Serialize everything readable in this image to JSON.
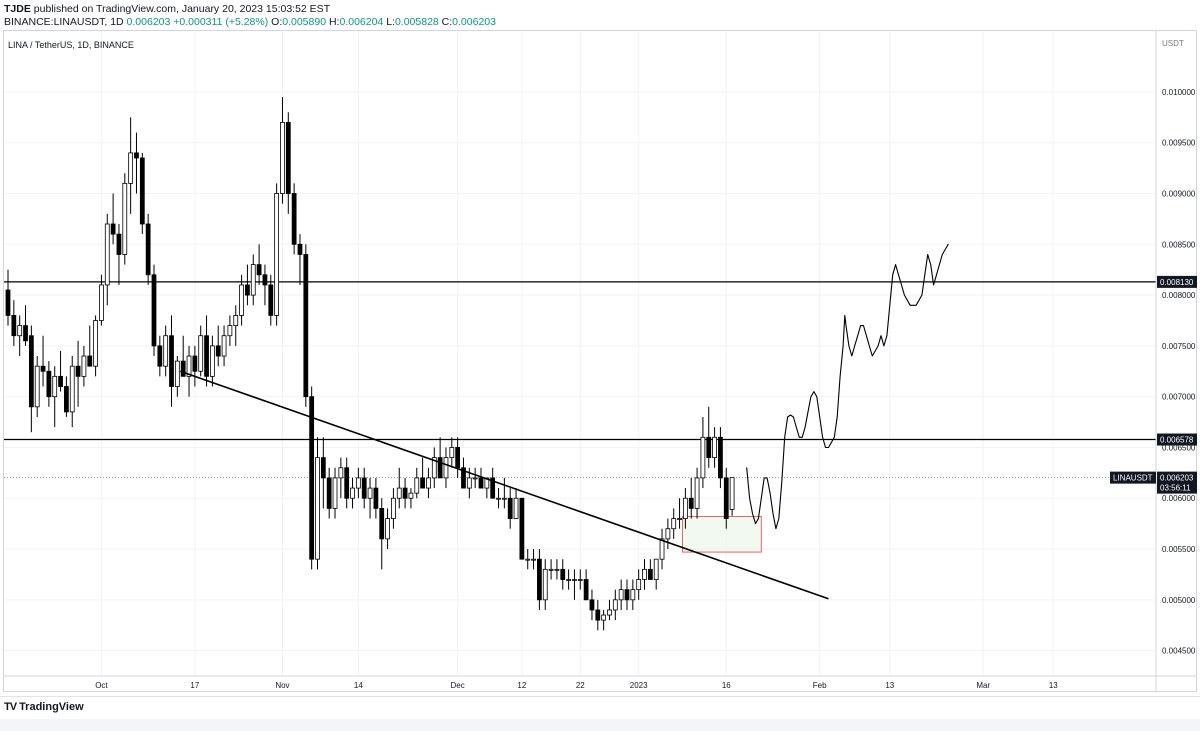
{
  "header": {
    "author": "TJDE",
    "published_text": "published on TradingView.com, January 20, 2023 15:03:52 EST",
    "symbol": "BINANCE:LINAUSDT, 1D",
    "price": "0.006203",
    "change": "+0.000311 (+5.28%)",
    "open_label": "O:",
    "open": "0.005890",
    "high_label": "H:",
    "high": "0.006204",
    "low_label": "L:",
    "low": "0.005828",
    "close_label": "C:",
    "close": "0.006203"
  },
  "footer": {
    "brand": "TradingView",
    "brand_mark": "TV"
  },
  "colors": {
    "candle": "#000000",
    "grid": "#f0f3fa",
    "axis_text": "#131722",
    "box": "#e06666",
    "box_fill": "#eaf5e6"
  },
  "chart_data": {
    "type": "candlestick",
    "title": "LINA / TetherUS, 1D, BINANCE",
    "currency_label": "USDT",
    "y_ticks": [
      "0.010000",
      "0.009500",
      "0.009000",
      "0.008500",
      "0.008000",
      "0.007500",
      "0.007000",
      "0.006500",
      "0.006000",
      "0.005500",
      "0.005000",
      "0.004500"
    ],
    "ylim": [
      0.00425,
      0.0106
    ],
    "x_ticks": [
      {
        "label": "Oct",
        "day": 0
      },
      {
        "label": "17",
        "day": 16
      },
      {
        "label": "Nov",
        "day": 31
      },
      {
        "label": "14",
        "day": 44
      },
      {
        "label": "Dec",
        "day": 61
      },
      {
        "label": "12",
        "day": 72
      },
      {
        "label": "22",
        "day": 82
      },
      {
        "label": "2023",
        "day": 92
      },
      {
        "label": "16",
        "day": 107
      },
      {
        "label": "Feb",
        "day": 123
      },
      {
        "label": "13",
        "day": 135
      },
      {
        "label": "Mar",
        "day": 151
      },
      {
        "label": "13",
        "day": 163
      }
    ],
    "xlim": [
      -16,
      171
    ],
    "levels": [
      {
        "value": 0.00813,
        "label": "0.008130"
      },
      {
        "value": 0.006578,
        "label": "0.006578"
      }
    ],
    "current_price": {
      "value": 0.006203,
      "symbol": "LINAUSDT",
      "price_label": "0.006203",
      "countdown": "03:56:11"
    },
    "trendline": [
      {
        "day": 13.5,
        "price": 0.00725
      },
      {
        "day": 124.5,
        "price": 0.00501
      }
    ],
    "highlight_box": {
      "day_start": 99.5,
      "day_end": 113,
      "price_top": 0.00582,
      "price_bottom": 0.00547
    },
    "projection_path": [
      [
        110.5,
        0.0063
      ],
      [
        111,
        0.006
      ],
      [
        111.5,
        0.00585
      ],
      [
        112,
        0.00575
      ],
      [
        112.5,
        0.0058
      ],
      [
        113,
        0.006
      ],
      [
        113.5,
        0.0062
      ],
      [
        114,
        0.0062
      ],
      [
        114.5,
        0.00605
      ],
      [
        115,
        0.00585
      ],
      [
        115.5,
        0.0057
      ],
      [
        116,
        0.0058
      ],
      [
        116.5,
        0.00615
      ],
      [
        117,
        0.0066
      ],
      [
        117.5,
        0.0068
      ],
      [
        118,
        0.00682
      ],
      [
        118.5,
        0.0068
      ],
      [
        119,
        0.0067
      ],
      [
        119.5,
        0.0066
      ],
      [
        120,
        0.0066
      ],
      [
        120.5,
        0.0067
      ],
      [
        121,
        0.00685
      ],
      [
        121.5,
        0.007
      ],
      [
        122,
        0.00705
      ],
      [
        122.5,
        0.007
      ],
      [
        123,
        0.0068
      ],
      [
        123.5,
        0.0066
      ],
      [
        124,
        0.0065
      ],
      [
        124.5,
        0.0065
      ],
      [
        125.5,
        0.0066
      ],
      [
        126,
        0.0068
      ],
      [
        126.5,
        0.0072
      ],
      [
        127,
        0.0075
      ],
      [
        127.3,
        0.0078
      ],
      [
        127.5,
        0.0077
      ],
      [
        128,
        0.0075
      ],
      [
        128.5,
        0.0074
      ],
      [
        129,
        0.0075
      ],
      [
        129.5,
        0.0076
      ],
      [
        130,
        0.0077
      ],
      [
        130.5,
        0.0077
      ],
      [
        131,
        0.0076
      ],
      [
        131.5,
        0.0075
      ],
      [
        132,
        0.0074
      ],
      [
        132.5,
        0.00745
      ],
      [
        133,
        0.0075
      ],
      [
        133.5,
        0.0076
      ],
      [
        134,
        0.0075
      ],
      [
        134.5,
        0.0076
      ],
      [
        135,
        0.0079
      ],
      [
        135.5,
        0.0082
      ],
      [
        136,
        0.0083
      ],
      [
        136.5,
        0.0082
      ],
      [
        137,
        0.0081
      ],
      [
        137.5,
        0.008
      ],
      [
        138.5,
        0.0079
      ],
      [
        139.5,
        0.0079
      ],
      [
        140.5,
        0.008
      ],
      [
        141,
        0.0082
      ],
      [
        141.5,
        0.0084
      ],
      [
        142,
        0.0083
      ],
      [
        142.5,
        0.0081
      ],
      [
        143,
        0.0082
      ],
      [
        143.5,
        0.0083
      ],
      [
        144,
        0.0084
      ],
      [
        144.5,
        0.00845
      ],
      [
        145,
        0.0085
      ]
    ],
    "candles": [
      [
        -16,
        0.00805,
        0.00825,
        0.0077,
        0.0078
      ],
      [
        -15,
        0.0078,
        0.00795,
        0.0075,
        0.0076
      ],
      [
        -14,
        0.0076,
        0.0078,
        0.0074,
        0.0077
      ],
      [
        -13,
        0.0077,
        0.0079,
        0.0075,
        0.00755
      ],
      [
        -12,
        0.0076,
        0.0077,
        0.00665,
        0.0069
      ],
      [
        -11,
        0.0069,
        0.0074,
        0.0068,
        0.0073
      ],
      [
        -10,
        0.0073,
        0.0076,
        0.0071,
        0.00725
      ],
      [
        -9,
        0.00725,
        0.00735,
        0.0069,
        0.007
      ],
      [
        -8,
        0.007,
        0.0073,
        0.0067,
        0.0072
      ],
      [
        -7,
        0.0072,
        0.00745,
        0.00705,
        0.0071
      ],
      [
        -6,
        0.0071,
        0.0072,
        0.0068,
        0.00685
      ],
      [
        -5,
        0.00685,
        0.0074,
        0.0067,
        0.0073
      ],
      [
        -4,
        0.0073,
        0.00755,
        0.0069,
        0.0072
      ],
      [
        -3,
        0.0072,
        0.0075,
        0.0071,
        0.0074
      ],
      [
        -2,
        0.0074,
        0.0077,
        0.0073,
        0.0073
      ],
      [
        -1,
        0.0073,
        0.0078,
        0.0072,
        0.00775
      ],
      [
        0,
        0.00775,
        0.0082,
        0.0077,
        0.0081
      ],
      [
        1,
        0.0081,
        0.0088,
        0.0079,
        0.0087
      ],
      [
        2,
        0.0087,
        0.009,
        0.0085,
        0.0086
      ],
      [
        3,
        0.0086,
        0.0087,
        0.0081,
        0.0084
      ],
      [
        4,
        0.0084,
        0.0092,
        0.0083,
        0.0091
      ],
      [
        5,
        0.0091,
        0.00975,
        0.0088,
        0.0094
      ],
      [
        6,
        0.0094,
        0.0096,
        0.009,
        0.00935
      ],
      [
        7,
        0.00935,
        0.0094,
        0.0086,
        0.0087
      ],
      [
        8,
        0.0087,
        0.0088,
        0.0081,
        0.0082
      ],
      [
        9,
        0.0082,
        0.0083,
        0.0074,
        0.0075
      ],
      [
        10,
        0.0075,
        0.0076,
        0.0072,
        0.0073
      ],
      [
        11,
        0.0073,
        0.0077,
        0.0072,
        0.0076
      ],
      [
        12,
        0.0076,
        0.0078,
        0.0069,
        0.0071
      ],
      [
        13,
        0.0071,
        0.0074,
        0.007,
        0.00735
      ],
      [
        14,
        0.00735,
        0.0076,
        0.0072,
        0.0072
      ],
      [
        15,
        0.0072,
        0.0075,
        0.007,
        0.0074
      ],
      [
        16,
        0.0074,
        0.0075,
        0.0071,
        0.00725
      ],
      [
        17,
        0.00725,
        0.0077,
        0.0072,
        0.0076
      ],
      [
        18,
        0.0076,
        0.0078,
        0.0071,
        0.0072
      ],
      [
        19,
        0.0072,
        0.0076,
        0.0071,
        0.0075
      ],
      [
        20,
        0.0075,
        0.0077,
        0.0073,
        0.0074
      ],
      [
        21,
        0.0074,
        0.0077,
        0.0073,
        0.0076
      ],
      [
        22,
        0.0076,
        0.0078,
        0.0075,
        0.0077
      ],
      [
        23,
        0.0077,
        0.0079,
        0.0075,
        0.0078
      ],
      [
        24,
        0.0078,
        0.0082,
        0.0077,
        0.0081
      ],
      [
        25,
        0.0081,
        0.0083,
        0.0079,
        0.008
      ],
      [
        26,
        0.008,
        0.0084,
        0.0079,
        0.0083
      ],
      [
        27,
        0.0083,
        0.0085,
        0.0081,
        0.0082
      ],
      [
        28,
        0.0082,
        0.0083,
        0.0079,
        0.0081
      ],
      [
        29,
        0.0081,
        0.0082,
        0.0077,
        0.0078
      ],
      [
        30,
        0.0078,
        0.0091,
        0.0077,
        0.009
      ],
      [
        31,
        0.009,
        0.00995,
        0.0089,
        0.0097
      ],
      [
        32,
        0.0097,
        0.0098,
        0.0088,
        0.009
      ],
      [
        33,
        0.009,
        0.0091,
        0.0084,
        0.0085
      ],
      [
        34,
        0.0085,
        0.0086,
        0.0081,
        0.0084
      ],
      [
        35,
        0.0084,
        0.0085,
        0.0069,
        0.007
      ],
      [
        36,
        0.007,
        0.0071,
        0.0053,
        0.0054
      ],
      [
        37,
        0.0054,
        0.0066,
        0.0053,
        0.0064
      ],
      [
        38,
        0.0064,
        0.0066,
        0.0059,
        0.0062
      ],
      [
        39,
        0.0062,
        0.0063,
        0.0058,
        0.0059
      ],
      [
        40,
        0.0059,
        0.0063,
        0.0058,
        0.0062
      ],
      [
        41,
        0.0062,
        0.0064,
        0.006,
        0.0063
      ],
      [
        42,
        0.0063,
        0.0064,
        0.0059,
        0.006
      ],
      [
        43,
        0.006,
        0.0062,
        0.0059,
        0.0061
      ],
      [
        44,
        0.0061,
        0.0063,
        0.006,
        0.0062
      ],
      [
        45,
        0.0062,
        0.0063,
        0.0059,
        0.006
      ],
      [
        46,
        0.006,
        0.0062,
        0.0058,
        0.0061
      ],
      [
        47,
        0.0061,
        0.0062,
        0.0058,
        0.0059
      ],
      [
        48,
        0.0059,
        0.006,
        0.0053,
        0.0056
      ],
      [
        49,
        0.0056,
        0.0059,
        0.0055,
        0.0058
      ],
      [
        50,
        0.0058,
        0.0061,
        0.0057,
        0.006
      ],
      [
        51,
        0.006,
        0.0063,
        0.0059,
        0.0061
      ],
      [
        52,
        0.0061,
        0.0062,
        0.0059,
        0.006
      ],
      [
        53,
        0.006,
        0.0061,
        0.0059,
        0.00605
      ],
      [
        54,
        0.00605,
        0.0063,
        0.006,
        0.0062
      ],
      [
        55,
        0.0062,
        0.0064,
        0.0061,
        0.0061
      ],
      [
        56,
        0.0061,
        0.0063,
        0.006,
        0.0062
      ],
      [
        57,
        0.0062,
        0.0065,
        0.0061,
        0.0064
      ],
      [
        58,
        0.0064,
        0.0066,
        0.0062,
        0.0062
      ],
      [
        59,
        0.0062,
        0.0065,
        0.0061,
        0.0064
      ],
      [
        60,
        0.0064,
        0.0066,
        0.0063,
        0.0065
      ],
      [
        61,
        0.0065,
        0.0066,
        0.0062,
        0.0063
      ],
      [
        62,
        0.0063,
        0.0064,
        0.0061,
        0.0061
      ],
      [
        63,
        0.0061,
        0.0063,
        0.006,
        0.0062
      ],
      [
        64,
        0.0062,
        0.0063,
        0.0061,
        0.0062
      ],
      [
        65,
        0.0062,
        0.0063,
        0.0061,
        0.0061
      ],
      [
        66,
        0.0061,
        0.0062,
        0.006,
        0.0062
      ],
      [
        67,
        0.0062,
        0.0063,
        0.006,
        0.006
      ],
      [
        68,
        0.006,
        0.0061,
        0.0059,
        0.006
      ],
      [
        69,
        0.006,
        0.0062,
        0.0059,
        0.006
      ],
      [
        70,
        0.006,
        0.0061,
        0.0057,
        0.0058
      ],
      [
        71,
        0.0058,
        0.0061,
        0.0058,
        0.006
      ],
      [
        72,
        0.006,
        0.006,
        0.0054,
        0.0054
      ],
      [
        73,
        0.0054,
        0.0055,
        0.0053,
        0.0054
      ],
      [
        74,
        0.0054,
        0.0055,
        0.0053,
        0.0054
      ],
      [
        75,
        0.0054,
        0.0055,
        0.0049,
        0.005
      ],
      [
        76,
        0.005,
        0.0054,
        0.0049,
        0.0053
      ],
      [
        77,
        0.0053,
        0.0054,
        0.0052,
        0.0053
      ],
      [
        78,
        0.0053,
        0.0054,
        0.0052,
        0.0053
      ],
      [
        79,
        0.0053,
        0.0054,
        0.0051,
        0.0052
      ],
      [
        80,
        0.0052,
        0.0053,
        0.0051,
        0.0052
      ],
      [
        81,
        0.0052,
        0.0053,
        0.005,
        0.0052
      ],
      [
        82,
        0.0052,
        0.0053,
        0.0051,
        0.0052
      ],
      [
        83,
        0.0052,
        0.0053,
        0.005,
        0.005
      ],
      [
        84,
        0.005,
        0.0051,
        0.0048,
        0.0049
      ],
      [
        85,
        0.0049,
        0.005,
        0.0047,
        0.0048
      ],
      [
        86,
        0.0048,
        0.0049,
        0.0047,
        0.00485
      ],
      [
        87,
        0.00485,
        0.005,
        0.0048,
        0.0049
      ],
      [
        88,
        0.0049,
        0.0051,
        0.0048,
        0.005
      ],
      [
        89,
        0.005,
        0.0052,
        0.0049,
        0.0051
      ],
      [
        90,
        0.0051,
        0.0052,
        0.0049,
        0.005
      ],
      [
        91,
        0.005,
        0.0052,
        0.0049,
        0.0051
      ],
      [
        92,
        0.0051,
        0.0053,
        0.005,
        0.0052
      ],
      [
        93,
        0.0052,
        0.0054,
        0.0051,
        0.0053
      ],
      [
        94,
        0.0053,
        0.0054,
        0.0052,
        0.0052
      ],
      [
        95,
        0.0052,
        0.0054,
        0.0051,
        0.0054
      ],
      [
        96,
        0.0054,
        0.0057,
        0.0053,
        0.0056
      ],
      [
        97,
        0.0056,
        0.0058,
        0.0055,
        0.0057
      ],
      [
        98,
        0.0057,
        0.0059,
        0.0056,
        0.0058
      ],
      [
        99,
        0.0058,
        0.006,
        0.0057,
        0.0058
      ],
      [
        100,
        0.0058,
        0.0061,
        0.0057,
        0.006
      ],
      [
        101,
        0.006,
        0.0062,
        0.0058,
        0.0059
      ],
      [
        102,
        0.0059,
        0.0063,
        0.0058,
        0.0062
      ],
      [
        103,
        0.0062,
        0.0068,
        0.0061,
        0.0066
      ],
      [
        104,
        0.0066,
        0.0069,
        0.0063,
        0.0064
      ],
      [
        105,
        0.0064,
        0.0067,
        0.0063,
        0.0066
      ],
      [
        106,
        0.0066,
        0.0067,
        0.0061,
        0.0062
      ],
      [
        107,
        0.0062,
        0.0063,
        0.0057,
        0.0058
      ],
      [
        108,
        0.00589,
        0.006204,
        0.005828,
        0.006203
      ]
    ]
  }
}
